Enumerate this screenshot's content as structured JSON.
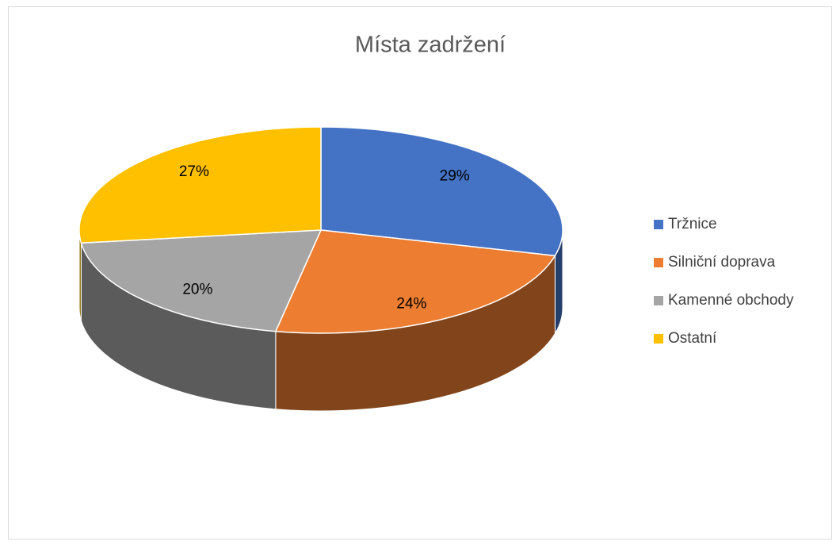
{
  "chart_data": {
    "type": "pie",
    "title": "Místa zadržení",
    "categories": [
      "Tržnice",
      "Silniční doprava",
      "Kamenné obchody",
      "Ostatní"
    ],
    "values": [
      29,
      24,
      20,
      27
    ],
    "value_labels": [
      "29%",
      "24%",
      "20%",
      "27%"
    ],
    "colors": [
      "#4472c4",
      "#ed7d31",
      "#a5a5a5",
      "#ffc000"
    ],
    "legend": "right"
  }
}
